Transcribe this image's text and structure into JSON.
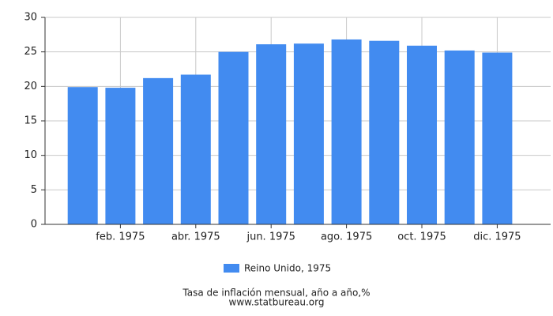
{
  "chart_data": {
    "type": "bar",
    "categories": [
      null,
      "feb. 1975",
      null,
      "abr. 1975",
      null,
      "jun. 1975",
      null,
      "ago. 1975",
      null,
      "oct. 1975",
      null,
      "dic. 1975"
    ],
    "series": [
      {
        "name": "Reino Unido, 1975",
        "color": "#428bf0",
        "values": [
          19.9,
          19.8,
          21.2,
          21.7,
          25.0,
          26.1,
          26.2,
          26.8,
          26.6,
          25.9,
          25.2,
          24.9
        ]
      }
    ],
    "ylim": [
      0,
      30
    ],
    "yticks": [
      0,
      5,
      10,
      15,
      20,
      25,
      30
    ],
    "grid": true,
    "caption": "Tasa de inflación mensual, año a año,%",
    "source": "www.statbureau.org"
  }
}
